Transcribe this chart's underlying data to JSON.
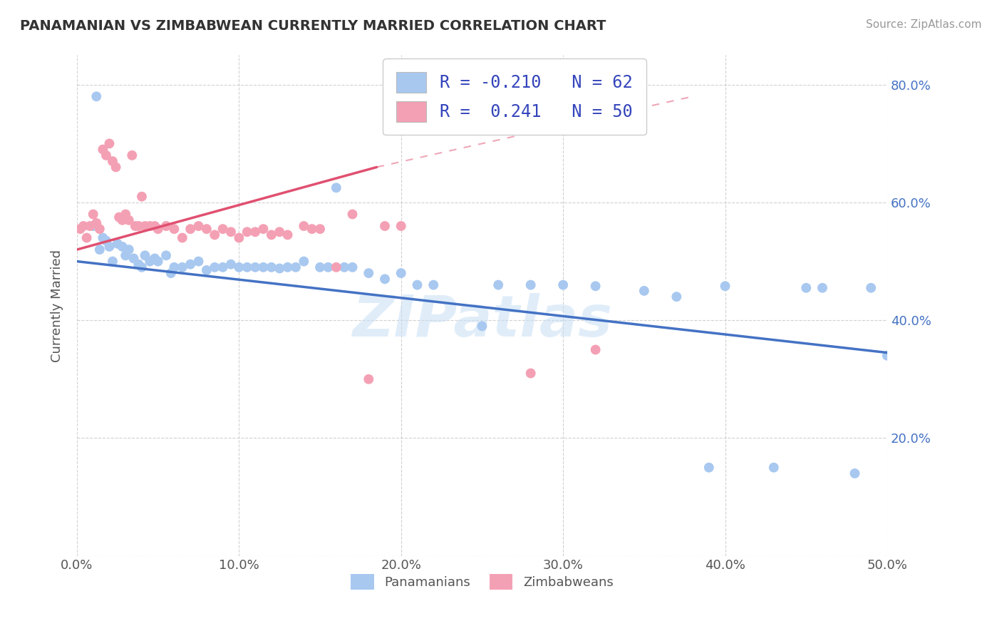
{
  "title": "PANAMANIAN VS ZIMBABWEAN CURRENTLY MARRIED CORRELATION CHART",
  "source": "Source: ZipAtlas.com",
  "ylabel": "Currently Married",
  "xlim": [
    0.0,
    0.5
  ],
  "ylim": [
    0.0,
    0.85
  ],
  "x_ticks": [
    0.0,
    0.1,
    0.2,
    0.3,
    0.4,
    0.5
  ],
  "x_tick_labels": [
    "0.0%",
    "10.0%",
    "20.0%",
    "30.0%",
    "40.0%",
    "50.0%"
  ],
  "y_ticks": [
    0.0,
    0.2,
    0.4,
    0.6,
    0.8
  ],
  "y_tick_labels": [
    "",
    "20.0%",
    "40.0%",
    "60.0%",
    "80.0%"
  ],
  "color_pan": "#a8c8f0",
  "color_zim": "#f4a0b4",
  "line_color_pan": "#4472c4",
  "line_color_zim": "#e05070",
  "watermark": "ZIPatlas",
  "pan_points_x": [
    0.01,
    0.012,
    0.014,
    0.016,
    0.018,
    0.02,
    0.022,
    0.025,
    0.028,
    0.03,
    0.032,
    0.035,
    0.038,
    0.04,
    0.042,
    0.045,
    0.048,
    0.05,
    0.055,
    0.058,
    0.06,
    0.065,
    0.07,
    0.075,
    0.08,
    0.085,
    0.09,
    0.095,
    0.1,
    0.105,
    0.11,
    0.115,
    0.12,
    0.125,
    0.13,
    0.135,
    0.14,
    0.15,
    0.155,
    0.16,
    0.165,
    0.17,
    0.18,
    0.19,
    0.2,
    0.21,
    0.22,
    0.25,
    0.26,
    0.28,
    0.3,
    0.32,
    0.35,
    0.37,
    0.39,
    0.4,
    0.43,
    0.45,
    0.46,
    0.48,
    0.49,
    0.5
  ],
  "pan_points_y": [
    0.56,
    0.78,
    0.52,
    0.54,
    0.535,
    0.525,
    0.5,
    0.53,
    0.525,
    0.51,
    0.52,
    0.505,
    0.495,
    0.49,
    0.51,
    0.5,
    0.505,
    0.5,
    0.51,
    0.48,
    0.49,
    0.49,
    0.495,
    0.5,
    0.485,
    0.49,
    0.49,
    0.495,
    0.49,
    0.49,
    0.49,
    0.49,
    0.49,
    0.488,
    0.49,
    0.49,
    0.5,
    0.49,
    0.49,
    0.625,
    0.49,
    0.49,
    0.48,
    0.47,
    0.48,
    0.46,
    0.46,
    0.39,
    0.46,
    0.46,
    0.46,
    0.458,
    0.45,
    0.44,
    0.15,
    0.458,
    0.15,
    0.455,
    0.455,
    0.14,
    0.455,
    0.34
  ],
  "zim_points_x": [
    0.002,
    0.004,
    0.006,
    0.008,
    0.01,
    0.012,
    0.014,
    0.016,
    0.018,
    0.02,
    0.022,
    0.024,
    0.026,
    0.028,
    0.03,
    0.032,
    0.034,
    0.036,
    0.038,
    0.04,
    0.042,
    0.045,
    0.048,
    0.05,
    0.055,
    0.06,
    0.065,
    0.07,
    0.075,
    0.08,
    0.085,
    0.09,
    0.095,
    0.1,
    0.105,
    0.11,
    0.115,
    0.12,
    0.125,
    0.13,
    0.14,
    0.145,
    0.15,
    0.16,
    0.17,
    0.18,
    0.19,
    0.2,
    0.28,
    0.32
  ],
  "zim_points_y": [
    0.555,
    0.56,
    0.54,
    0.56,
    0.58,
    0.565,
    0.555,
    0.69,
    0.68,
    0.7,
    0.67,
    0.66,
    0.575,
    0.57,
    0.58,
    0.57,
    0.68,
    0.56,
    0.56,
    0.61,
    0.56,
    0.56,
    0.56,
    0.555,
    0.56,
    0.555,
    0.54,
    0.555,
    0.56,
    0.555,
    0.545,
    0.555,
    0.55,
    0.54,
    0.55,
    0.55,
    0.555,
    0.545,
    0.55,
    0.545,
    0.56,
    0.555,
    0.555,
    0.49,
    0.58,
    0.3,
    0.56,
    0.56,
    0.31,
    0.35
  ],
  "trend_pan_x0": 0.0,
  "trend_pan_x1": 0.5,
  "trend_pan_y0": 0.5,
  "trend_pan_y1": 0.345,
  "trend_zim_x0": 0.0,
  "trend_zim_x1": 0.185,
  "trend_zim_y0": 0.52,
  "trend_zim_y1": 0.66
}
